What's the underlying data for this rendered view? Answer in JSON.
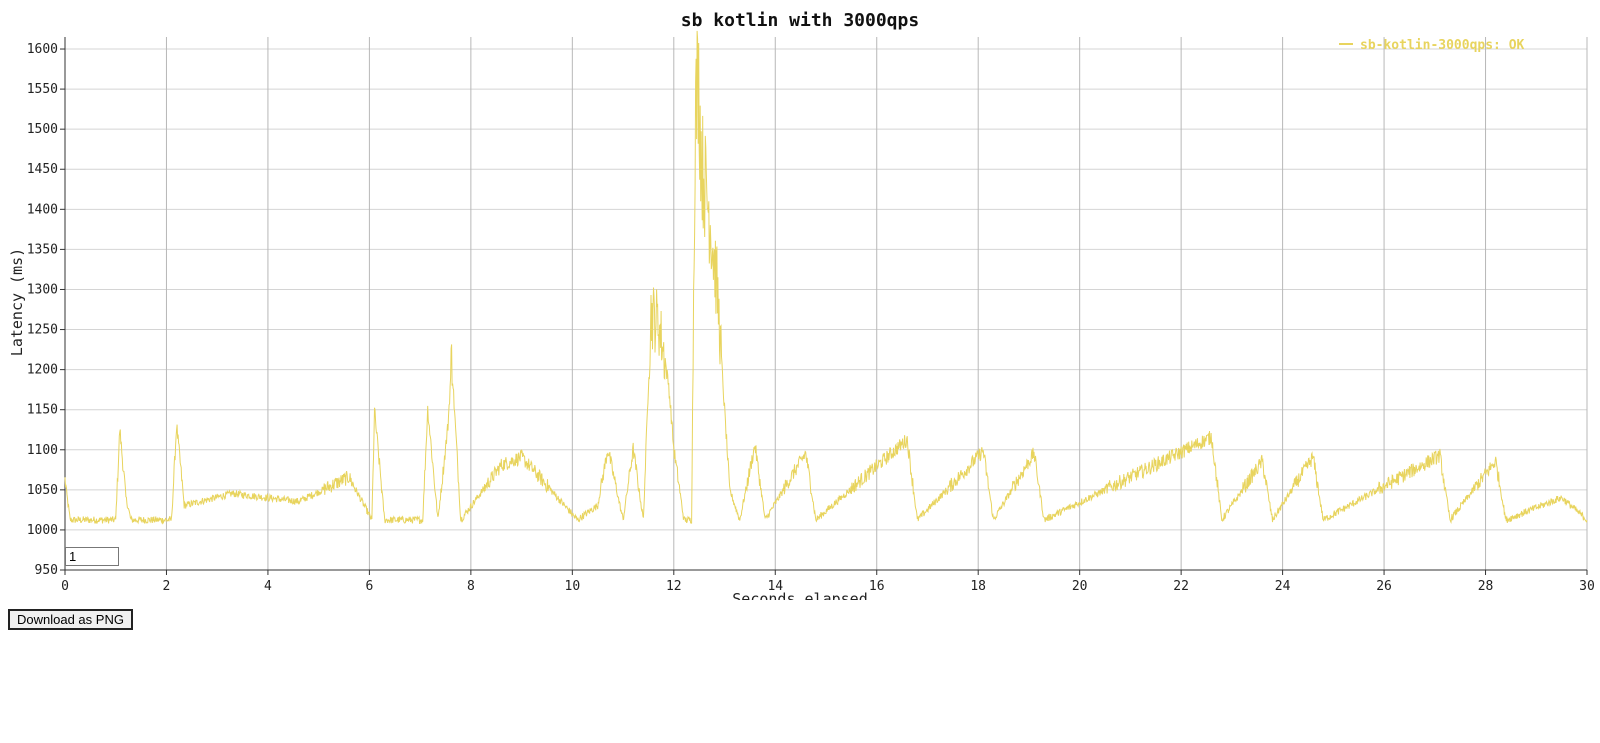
{
  "chart_data": {
    "type": "line",
    "title": "sb kotlin with 3000qps",
    "xlabel": "Seconds elapsed",
    "ylabel": "Latency (ms)",
    "xlim": [
      0,
      30
    ],
    "ylim": [
      950,
      1600
    ],
    "x_ticks": [
      "0",
      "2",
      "4",
      "6",
      "8",
      "10",
      "12",
      "14",
      "16",
      "18",
      "20",
      "22",
      "24",
      "26",
      "28",
      "30"
    ],
    "y_ticks": [
      "950",
      "1000",
      "1050",
      "1100",
      "1150",
      "1200",
      "1250",
      "1300",
      "1350",
      "1400",
      "1450",
      "1500",
      "1550",
      "1600"
    ],
    "grid": true,
    "legend_position": "top-right",
    "series": [
      {
        "name": "sb-kotlin-3000qps: OK",
        "color": "#e8d45e",
        "baseline": 1012,
        "x": [
          0.0,
          0.1,
          1.0,
          1.08,
          1.2,
          1.3,
          2.1,
          2.2,
          2.35,
          3.3,
          4.6,
          5.6,
          6.05,
          6.1,
          6.3,
          7.05,
          7.15,
          7.35,
          7.55,
          7.62,
          7.8,
          8.6,
          9.0,
          10.1,
          10.5,
          10.7,
          11.0,
          11.2,
          11.4,
          11.55,
          11.7,
          11.9,
          12.0,
          12.2,
          12.35,
          12.42,
          12.48,
          12.55,
          12.7,
          12.85,
          12.95,
          13.1,
          13.3,
          13.6,
          13.8,
          14.6,
          14.8,
          16.6,
          16.8,
          17.7,
          18.1,
          18.3,
          19.1,
          19.3,
          22.6,
          22.8,
          23.6,
          23.8,
          24.6,
          24.8,
          27.1,
          27.3,
          28.2,
          28.4,
          29.5,
          30.0
        ],
        "y": [
          1062,
          1012,
          1012,
          1125,
          1040,
          1012,
          1012,
          1130,
          1030,
          1045,
          1035,
          1065,
          1012,
          1148,
          1012,
          1012,
          1150,
          1012,
          1130,
          1212,
          1012,
          1080,
          1090,
          1012,
          1030,
          1100,
          1012,
          1100,
          1012,
          1265,
          1255,
          1180,
          1100,
          1012,
          1012,
          1500,
          1560,
          1450,
          1390,
          1300,
          1200,
          1050,
          1012,
          1105,
          1012,
          1095,
          1012,
          1112,
          1012,
          1070,
          1098,
          1012,
          1095,
          1012,
          1115,
          1012,
          1085,
          1012,
          1090,
          1012,
          1092,
          1012,
          1085,
          1012,
          1040,
          1012
        ]
      }
    ]
  },
  "controls": {
    "rolling_window_value": "1",
    "download_label": "Download as PNG"
  }
}
